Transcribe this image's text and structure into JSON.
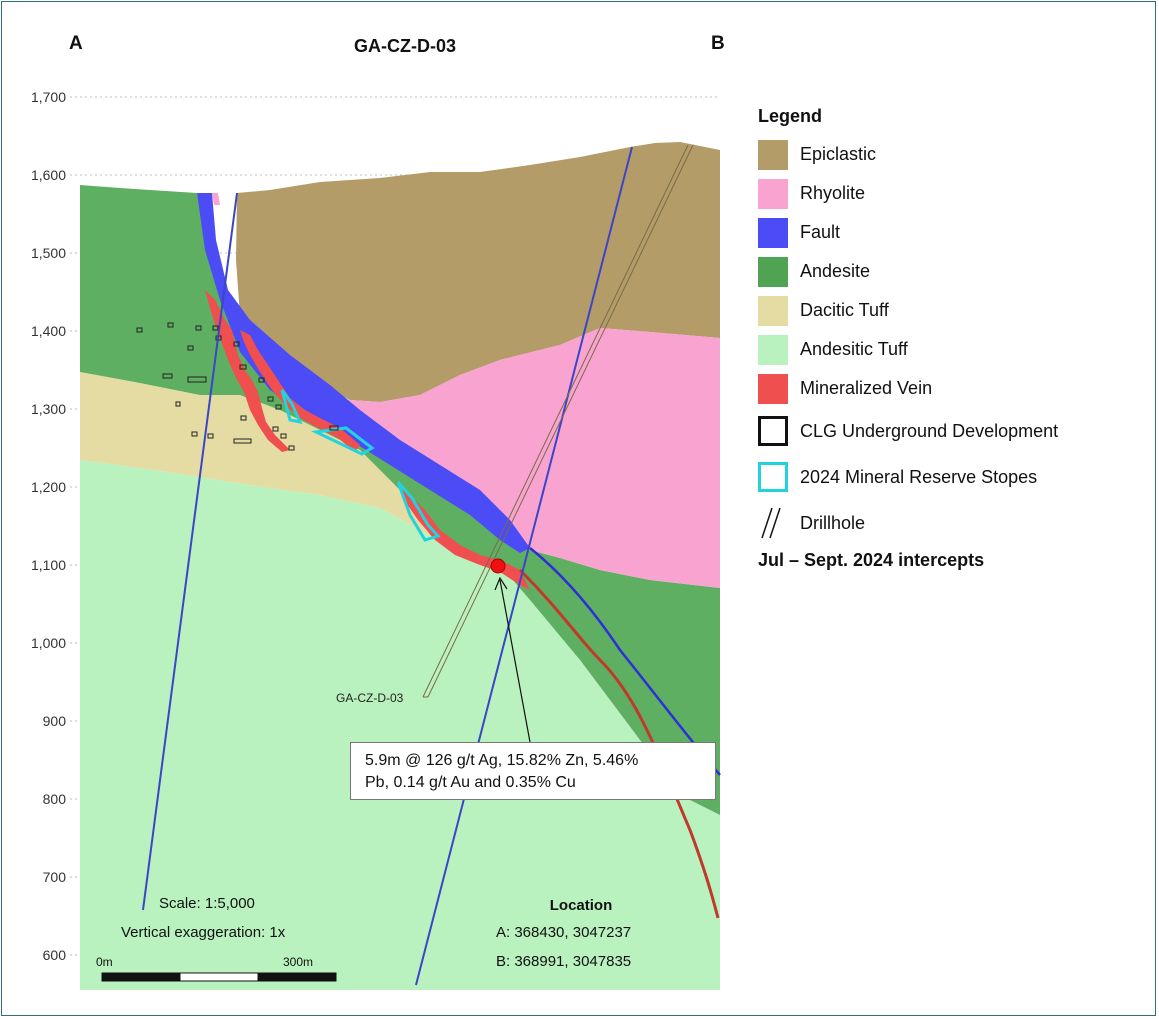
{
  "section": {
    "title": "GA-CZ-D-03",
    "end_a": "A",
    "end_b": "B",
    "y_axis_ticks": [
      "1,700",
      "1,600",
      "1,500",
      "1,400",
      "1,300",
      "1,200",
      "1,100",
      "1,000",
      "900",
      "800",
      "700",
      "600"
    ]
  },
  "drillhole": {
    "label": "GA-CZ-D-03"
  },
  "intercept_callout": {
    "line1": "5.9m @ 126 g/t Ag, 15.82% Zn, 5.46%",
    "line2": "Pb, 0.14 g/t Au and 0.35% Cu"
  },
  "scale": {
    "scale_text": "Scale: 1:5,000",
    "exaggeration_text": "Vertical exaggeration: 1x",
    "bar_start_label": "0m",
    "bar_end_label": "300m"
  },
  "location": {
    "title": "Location",
    "point_a": "A:  368430,  3047237",
    "point_b": "B:  368991,  3047835"
  },
  "legend": {
    "title": "Legend",
    "items": [
      {
        "label": "Epiclastic",
        "color": "#b49c68"
      },
      {
        "label": "Rhyolite",
        "color": "#f9a3d0"
      },
      {
        "label": "Fault",
        "color": "#4b4cf5"
      },
      {
        "label": "Andesite",
        "color": "#4fa352"
      },
      {
        "label": "Dacitic Tuff",
        "color": "#e5dca3"
      },
      {
        "label": "Andesitic Tuff",
        "color": "#b9f2be"
      },
      {
        "label": "Mineralized Vein",
        "color": "#ef4f4f"
      }
    ],
    "underground_label": "CLG Underground  Development",
    "stopes_label": "2024 Mineral Reserve Stopes",
    "drillhole_label": "Drillhole",
    "intercepts_label": "Jul – Sept. 2024 intercepts"
  }
}
